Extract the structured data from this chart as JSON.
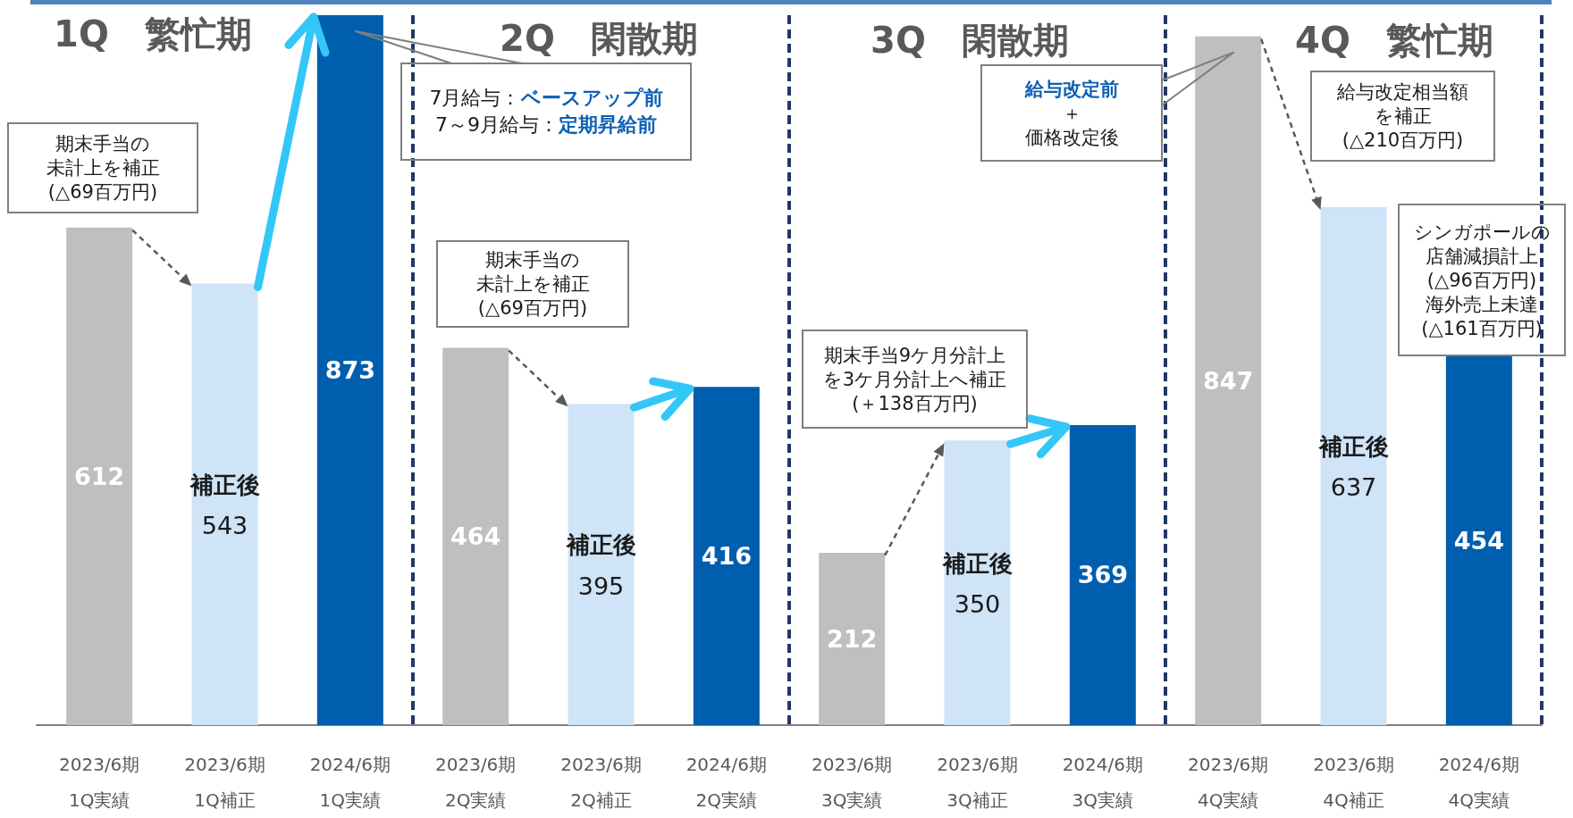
{
  "chart_data": {
    "type": "bar",
    "categories": [
      "2023/6期\n1Q実績",
      "2023/6期\n1Q補正",
      "2024/6期\n1Q実績",
      "2023/6期\n2Q実績",
      "2023/6期\n2Q補正",
      "2024/6期\n2Q実績",
      "2023/6期\n3Q実績",
      "2023/6期\n3Q補正",
      "2024/6期\n3Q実績",
      "2023/6期\n4Q実績",
      "2023/6期\n4Q補正",
      "2024/6期\n4Q実績"
    ],
    "values": [
      612,
      543,
      873,
      464,
      395,
      416,
      212,
      350,
      369,
      847,
      637,
      454
    ],
    "colors": [
      "#bfbfbf",
      "#cfe4f7",
      "#005eae",
      "#bfbfbf",
      "#cfe4f7",
      "#005eae",
      "#bfbfbf",
      "#cfe4f7",
      "#005eae",
      "#bfbfbf",
      "#cfe4f7",
      "#005eae"
    ],
    "data_labels": true,
    "grid": "x",
    "tick_labels": "x",
    "annotations": [
      "1Q　繁忙期",
      "期末手当の未計上を補正(△69百万円)",
      "2Q　閑散期",
      "7月給与：ベースアップ前\n7～9月給与：定期昇給前",
      "期末手当の未計上を補正(△69百万円)",
      "3Q　閑散期",
      "給与改定前＋価格改定後",
      "期末手当9ケ月分計上を3ケ月分計上へ補正(＋138百万円)",
      "4Q　繁忙期",
      "給与改定相当額を補正(△210百万円)",
      "シンガポールの店舗減損計上(△96百万円)海外売上未達(△161百万円)",
      "補正後",
      "補正後",
      "補正後",
      "補正後"
    ]
  }
}
